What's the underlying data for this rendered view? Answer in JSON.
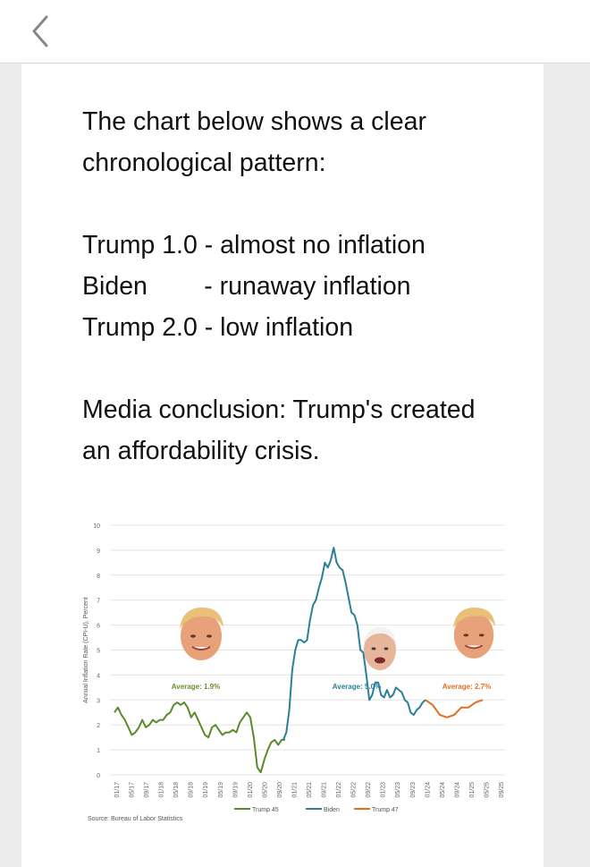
{
  "header": {
    "back_icon": "chevron-left-icon"
  },
  "post": {
    "line1": "The chart below shows a clear",
    "line2": "chronological pattern:",
    "line3": "Trump 1.0 - almost no inflation",
    "line4": "Biden        - runaway inflation",
    "line5": "Trump 2.0 - low inflation",
    "line6": "Media conclusion: Trump's created",
    "line7": "an affordability crisis."
  },
  "chart_data": {
    "type": "line",
    "ylabel": "Annual Inflation Rate (CPI-U), Percent",
    "source": "Source: Bureau of Labor Statistics",
    "ylim": [
      0,
      10
    ],
    "yticks": [
      "0",
      "1",
      "2",
      "3",
      "4",
      "5",
      "6",
      "7",
      "8",
      "9",
      "10"
    ],
    "xticks": [
      "01/17",
      "05/17",
      "09/17",
      "01/18",
      "05/18",
      "09/18",
      "01/19",
      "05/19",
      "09/19",
      "01/20",
      "05/20",
      "09/20",
      "01/21",
      "05/21",
      "09/21",
      "01/22",
      "05/22",
      "09/22",
      "01/23",
      "05/23",
      "09/23",
      "01/24",
      "05/24",
      "09/24",
      "01/25",
      "05/25",
      "09/25"
    ],
    "annotations": [
      "Average: 1.9%",
      "Average: 5.0%",
      "Average: 2.7%"
    ],
    "series": [
      {
        "name": "Trump 45",
        "color": "#5a8a2b",
        "values": [
          2.5,
          2.7,
          2.4,
          2.2,
          1.9,
          1.6,
          1.7,
          1.9,
          2.2,
          1.9,
          2.0,
          2.2,
          2.1,
          2.2,
          2.2,
          2.4,
          2.5,
          2.8,
          2.9,
          2.8,
          2.9,
          2.7,
          2.3,
          2.5,
          2.2,
          1.9,
          1.6,
          1.5,
          1.9,
          2.0,
          1.8,
          1.6,
          1.7,
          1.7,
          1.8,
          1.7,
          2.1,
          2.3,
          2.5,
          2.3,
          1.5,
          0.3,
          0.1,
          0.6,
          1.0,
          1.3,
          1.4,
          1.2,
          1.4,
          1.4
        ]
      },
      {
        "name": "Biden",
        "color": "#2a7f9a",
        "values": [
          1.4,
          1.7,
          2.6,
          4.2,
          5.0,
          5.4,
          5.4,
          5.3,
          5.4,
          6.2,
          6.8,
          7.0,
          7.5,
          7.9,
          8.5,
          8.3,
          8.6,
          9.1,
          8.5,
          8.3,
          8.2,
          7.7,
          7.1,
          6.5,
          6.4,
          6.0,
          5.0,
          4.9,
          4.0,
          3.0,
          3.2,
          3.7,
          3.7,
          3.2,
          3.1,
          3.4,
          3.1,
          3.2,
          3.5,
          3.4,
          3.3,
          3.0,
          2.9,
          2.5,
          2.4,
          2.6,
          2.7,
          2.9,
          3.0
        ]
      },
      {
        "name": "Trump 47",
        "color": "#e07020",
        "values": [
          3.0,
          2.8,
          2.4,
          2.3,
          2.4,
          2.7,
          2.7,
          2.9,
          3.0
        ]
      }
    ],
    "legend_position": "bottom"
  }
}
